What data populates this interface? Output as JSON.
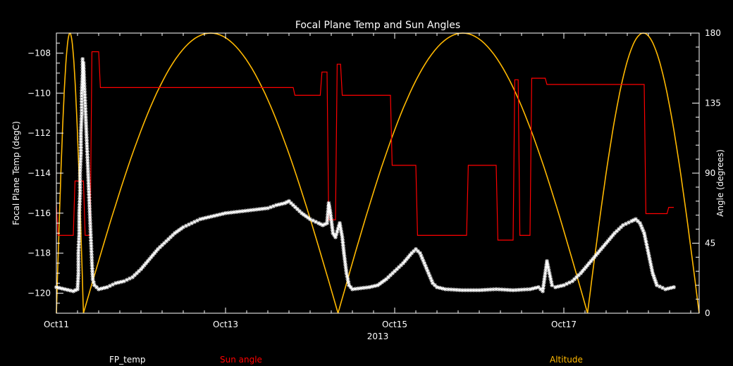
{
  "chart_data": {
    "type": "line",
    "title": "Focal Plane Temp and Sun Angles",
    "xlabel": "2013",
    "ylabel_left": "Focal Plane Temp (degC)",
    "ylabel_right": "Angle (degrees)",
    "x_unit": "days since Oct11 00:00",
    "xlim": [
      0,
      7.6
    ],
    "ylim_left": [
      -121,
      -107
    ],
    "ylim_right": [
      0,
      180
    ],
    "x_ticks": [
      {
        "x": 0,
        "label": "Oct11"
      },
      {
        "x": 2,
        "label": "Oct13"
      },
      {
        "x": 4,
        "label": "Oct15"
      },
      {
        "x": 6,
        "label": "Oct17"
      }
    ],
    "y_ticks_left": [
      {
        "v": -108,
        "label": "−108"
      },
      {
        "v": -110,
        "label": "−110"
      },
      {
        "v": -112,
        "label": "−112"
      },
      {
        "v": -114,
        "label": "−114"
      },
      {
        "v": -116,
        "label": "−116"
      },
      {
        "v": -118,
        "label": "−118"
      },
      {
        "v": -120,
        "label": "−120"
      }
    ],
    "y_ticks_right": [
      {
        "v": 0,
        "label": "0"
      },
      {
        "v": 45,
        "label": "45"
      },
      {
        "v": 90,
        "label": "90"
      },
      {
        "v": 135,
        "label": "135"
      },
      {
        "v": 180,
        "label": "180"
      }
    ],
    "colors": {
      "background": "#000000",
      "axes": "#ffffff",
      "fp_temp": "#ffffff",
      "sun_angle": "#ff0000",
      "altitude": "#ffb800"
    },
    "series": [
      {
        "name": "FP_temp",
        "axis": "left",
        "style": "markers",
        "marker": "*",
        "points": [
          [
            0.0,
            -119.7
          ],
          [
            0.1,
            -119.8
          ],
          [
            0.2,
            -119.9
          ],
          [
            0.25,
            -119.8
          ],
          [
            0.26,
            -119.0
          ],
          [
            0.26,
            -118.0
          ],
          [
            0.27,
            -117.0
          ],
          [
            0.27,
            -116.0
          ],
          [
            0.28,
            -115.0
          ],
          [
            0.28,
            -114.0
          ],
          [
            0.29,
            -113.0
          ],
          [
            0.29,
            -112.0
          ],
          [
            0.3,
            -111.0
          ],
          [
            0.3,
            -110.0
          ],
          [
            0.31,
            -109.0
          ],
          [
            0.31,
            -108.3
          ],
          [
            0.32,
            -108.5
          ],
          [
            0.33,
            -109.5
          ],
          [
            0.34,
            -110.5
          ],
          [
            0.35,
            -111.5
          ],
          [
            0.36,
            -112.5
          ],
          [
            0.37,
            -113.5
          ],
          [
            0.38,
            -114.5
          ],
          [
            0.39,
            -115.5
          ],
          [
            0.4,
            -116.5
          ],
          [
            0.41,
            -117.5
          ],
          [
            0.42,
            -118.5
          ],
          [
            0.43,
            -119.3
          ],
          [
            0.45,
            -119.6
          ],
          [
            0.5,
            -119.8
          ],
          [
            0.6,
            -119.7
          ],
          [
            0.7,
            -119.5
          ],
          [
            0.8,
            -119.4
          ],
          [
            0.9,
            -119.2
          ],
          [
            1.0,
            -118.8
          ],
          [
            1.1,
            -118.3
          ],
          [
            1.2,
            -117.8
          ],
          [
            1.3,
            -117.4
          ],
          [
            1.4,
            -117.0
          ],
          [
            1.5,
            -116.7
          ],
          [
            1.6,
            -116.5
          ],
          [
            1.7,
            -116.3
          ],
          [
            1.8,
            -116.2
          ],
          [
            1.9,
            -116.1
          ],
          [
            2.0,
            -116.0
          ],
          [
            2.1,
            -115.95
          ],
          [
            2.2,
            -115.9
          ],
          [
            2.3,
            -115.85
          ],
          [
            2.4,
            -115.8
          ],
          [
            2.5,
            -115.75
          ],
          [
            2.6,
            -115.6
          ],
          [
            2.7,
            -115.5
          ],
          [
            2.75,
            -115.4
          ],
          [
            2.8,
            -115.6
          ],
          [
            2.9,
            -116.0
          ],
          [
            3.0,
            -116.3
          ],
          [
            3.1,
            -116.5
          ],
          [
            3.15,
            -116.6
          ],
          [
            3.2,
            -116.5
          ],
          [
            3.22,
            -115.5
          ],
          [
            3.24,
            -116.0
          ],
          [
            3.27,
            -117.0
          ],
          [
            3.3,
            -117.2
          ],
          [
            3.35,
            -116.5
          ],
          [
            3.38,
            -117.2
          ],
          [
            3.4,
            -118.0
          ],
          [
            3.43,
            -119.0
          ],
          [
            3.46,
            -119.6
          ],
          [
            3.5,
            -119.8
          ],
          [
            3.6,
            -119.75
          ],
          [
            3.7,
            -119.7
          ],
          [
            3.8,
            -119.6
          ],
          [
            3.9,
            -119.3
          ],
          [
            4.0,
            -118.9
          ],
          [
            4.1,
            -118.5
          ],
          [
            4.2,
            -118.0
          ],
          [
            4.25,
            -117.8
          ],
          [
            4.3,
            -118.0
          ],
          [
            4.35,
            -118.5
          ],
          [
            4.4,
            -119.0
          ],
          [
            4.45,
            -119.5
          ],
          [
            4.5,
            -119.7
          ],
          [
            4.6,
            -119.8
          ],
          [
            4.8,
            -119.85
          ],
          [
            5.0,
            -119.85
          ],
          [
            5.2,
            -119.8
          ],
          [
            5.4,
            -119.85
          ],
          [
            5.6,
            -119.8
          ],
          [
            5.7,
            -119.7
          ],
          [
            5.75,
            -119.9
          ],
          [
            5.78,
            -119.0
          ],
          [
            5.8,
            -118.4
          ],
          [
            5.83,
            -119.0
          ],
          [
            5.86,
            -119.6
          ],
          [
            5.9,
            -119.7
          ],
          [
            6.0,
            -119.6
          ],
          [
            6.1,
            -119.4
          ],
          [
            6.2,
            -119.0
          ],
          [
            6.3,
            -118.5
          ],
          [
            6.4,
            -118.0
          ],
          [
            6.5,
            -117.5
          ],
          [
            6.6,
            -117.0
          ],
          [
            6.7,
            -116.6
          ],
          [
            6.8,
            -116.4
          ],
          [
            6.85,
            -116.3
          ],
          [
            6.9,
            -116.5
          ],
          [
            6.95,
            -117.0
          ],
          [
            7.0,
            -118.0
          ],
          [
            7.05,
            -119.0
          ],
          [
            7.1,
            -119.6
          ],
          [
            7.2,
            -119.8
          ],
          [
            7.3,
            -119.7
          ]
        ]
      },
      {
        "name": "Sun angle",
        "axis": "right",
        "style": "step",
        "points": [
          [
            0.0,
            70
          ],
          [
            0.02,
            50
          ],
          [
            0.2,
            50
          ],
          [
            0.22,
            85
          ],
          [
            0.32,
            85
          ],
          [
            0.34,
            50
          ],
          [
            0.4,
            50
          ],
          [
            0.42,
            168
          ],
          [
            0.5,
            168
          ],
          [
            0.52,
            145
          ],
          [
            2.8,
            145
          ],
          [
            2.82,
            140
          ],
          [
            3.12,
            140
          ],
          [
            3.14,
            155
          ],
          [
            3.2,
            155
          ],
          [
            3.22,
            60
          ],
          [
            3.3,
            60
          ],
          [
            3.32,
            160
          ],
          [
            3.36,
            160
          ],
          [
            3.38,
            140
          ],
          [
            3.95,
            140
          ],
          [
            3.97,
            95
          ],
          [
            4.25,
            95
          ],
          [
            4.27,
            50
          ],
          [
            4.85,
            50
          ],
          [
            4.87,
            95
          ],
          [
            5.2,
            95
          ],
          [
            5.22,
            47
          ],
          [
            5.4,
            47
          ],
          [
            5.42,
            150
          ],
          [
            5.46,
            150
          ],
          [
            5.48,
            50
          ],
          [
            5.6,
            50
          ],
          [
            5.62,
            151
          ],
          [
            5.78,
            151
          ],
          [
            5.8,
            147
          ],
          [
            6.95,
            147
          ],
          [
            6.97,
            64
          ],
          [
            7.22,
            64
          ],
          [
            7.24,
            68
          ],
          [
            7.3,
            68
          ]
        ]
      },
      {
        "name": "Altitude",
        "axis": "right",
        "style": "arches",
        "segments": [
          [
            0.0,
            0.32
          ],
          [
            0.32,
            3.33
          ],
          [
            3.33,
            6.28
          ],
          [
            6.28,
            7.6
          ]
        ],
        "peak": 180
      }
    ],
    "legend": {
      "placement": "bottom",
      "entries": [
        {
          "label": "FP_temp",
          "color": "#ffffff"
        },
        {
          "label": "Sun angle",
          "color": "#ff0000"
        },
        {
          "label": "Altitude",
          "color": "#ffb800"
        }
      ]
    }
  }
}
